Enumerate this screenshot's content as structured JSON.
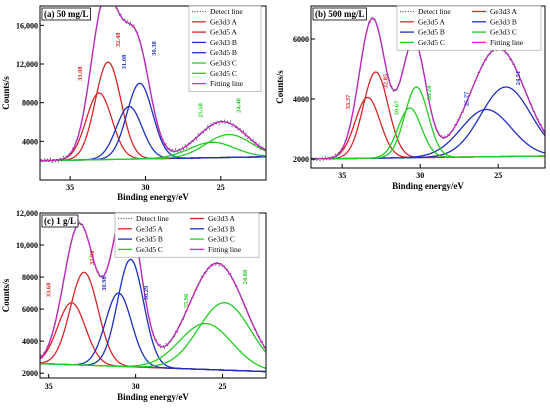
{
  "chart_data": [
    {
      "type": "line",
      "panel_label": "(a) 50 mg/L",
      "xlabel": "Binding energy/eV",
      "ylabel": "Counts/s",
      "xlim": [
        37,
        22
      ],
      "ylim": [
        0,
        18000
      ],
      "x_ticks": [
        35,
        30,
        25
      ],
      "y_ticks": [
        4000,
        8000,
        12000,
        16000
      ],
      "y_tick_labels": [
        "4000",
        "8000",
        "12,000",
        "16,000"
      ],
      "baseline": {
        "start": 2000,
        "end": 2400
      },
      "legend": {
        "position": "top-right",
        "columns": 1,
        "entries": [
          "Detect line",
          "Ge3d3 A",
          "Ge3d5 A",
          "Ge3d3 B",
          "Ge3d5 B",
          "Ge3d3 C",
          "Ge3d5 C",
          "Fitting line"
        ]
      },
      "series": [
        {
          "name": "Ge3d3 A",
          "color": "#d62728",
          "center": 33.08,
          "height": 9000,
          "width": 0.85
        },
        {
          "name": "Ge3d5 A",
          "color": "#d62728",
          "center": 32.48,
          "height": 12200,
          "width": 0.85
        },
        {
          "name": "Ge3d3 B",
          "color": "#1f2fbf",
          "center": 31.08,
          "height": 7600,
          "width": 0.85
        },
        {
          "name": "Ge3d5 B",
          "color": "#1f2fbf",
          "center": 30.38,
          "height": 10000,
          "width": 0.85
        },
        {
          "name": "Ge3d3 C",
          "color": "#22cc22",
          "center": 25.58,
          "height": 3900,
          "width": 1.5
        },
        {
          "name": "Ge3d5 C",
          "color": "#22cc22",
          "center": 24.48,
          "height": 4700,
          "width": 1.5
        }
      ],
      "detect_color": "#555555",
      "fit_color": "#e01ee0",
      "annotations": [
        {
          "text": "33.08",
          "color": "#d62728",
          "x": 34.2,
          "y": 11000
        },
        {
          "text": "32.48",
          "color": "#d62728",
          "x": 31.7,
          "y": 14500
        },
        {
          "text": "31.08",
          "color": "#1f2fbf",
          "x": 31.3,
          "y": 12200
        },
        {
          "text": "30.38",
          "color": "#1f2fbf",
          "x": 29.3,
          "y": 13600
        },
        {
          "text": "25.58",
          "color": "#22cc22",
          "x": 26.2,
          "y": 7200
        },
        {
          "text": "24.48",
          "color": "#22cc22",
          "x": 23.7,
          "y": 7700
        }
      ]
    },
    {
      "type": "line",
      "panel_label": "(b) 500 mg/L",
      "xlabel": "Binding energy/eV",
      "ylabel": "Counts/s",
      "xlim": [
        37,
        22
      ],
      "ylim": [
        1700,
        7100
      ],
      "x_ticks": [
        35,
        30,
        25
      ],
      "y_ticks": [
        2000,
        4000,
        6000
      ],
      "y_tick_labels": [
        "2000",
        "4000",
        "6000"
      ],
      "baseline": {
        "start": 2000,
        "end": 2100
      },
      "legend": {
        "position": "top-right",
        "columns": 2,
        "entries": [
          "Detect line",
          "Ge3d3 A",
          "Ge3d5 A",
          "Ge3d3 B",
          "Ge3d5 B",
          "Ge3d3 C",
          "Ge3d5 C",
          "Fitting line"
        ]
      },
      "series": [
        {
          "name": "Ge3d3 A",
          "color": "#d62728",
          "center": 33.37,
          "height": 4050,
          "width": 0.8
        },
        {
          "name": "Ge3d5 A",
          "color": "#d62728",
          "center": 32.85,
          "height": 4900,
          "width": 0.8
        },
        {
          "name": "Ge3d3 B",
          "color": "#1f2fbf",
          "center": 25.77,
          "height": 3650,
          "width": 1.6
        },
        {
          "name": "Ge3d5 B",
          "color": "#1f2fbf",
          "center": 24.51,
          "height": 4400,
          "width": 1.6
        },
        {
          "name": "Ge3d3 C",
          "color": "#22cc22",
          "center": 30.67,
          "height": 3700,
          "width": 0.75
        },
        {
          "name": "Ge3d5 C",
          "color": "#22cc22",
          "center": 30.24,
          "height": 4400,
          "width": 0.75
        }
      ],
      "detect_color": "#555555",
      "fit_color": "#e01ee0",
      "annotations": [
        {
          "text": "33.37",
          "color": "#d62728",
          "x": 34.5,
          "y": 3900
        },
        {
          "text": "32.85",
          "color": "#d62728",
          "x": 32.1,
          "y": 4600
        },
        {
          "text": "30.67",
          "color": "#22cc22",
          "x": 31.4,
          "y": 3700
        },
        {
          "text": "30.24",
          "color": "#22cc22",
          "x": 29.3,
          "y": 4200
        },
        {
          "text": "25.77",
          "color": "#1f2fbf",
          "x": 26.9,
          "y": 4000
        },
        {
          "text": "24.51",
          "color": "#1f2fbf",
          "x": 23.6,
          "y": 4700
        }
      ]
    },
    {
      "type": "line",
      "panel_label": "(c) 1 g/L",
      "xlabel": "Binding energy/eV",
      "ylabel": "Counts/s",
      "xlim": [
        35.5,
        22.5
      ],
      "ylim": [
        1700,
        12000
      ],
      "x_ticks": [
        35,
        30,
        25
      ],
      "y_ticks": [
        2000,
        4000,
        6000,
        8000,
        10000,
        12000
      ],
      "y_tick_labels": [
        "2000",
        "4000",
        "6000",
        "8000",
        "10,000",
        "12,000"
      ],
      "baseline": {
        "start": 2600,
        "end": 2100
      },
      "legend": {
        "position": "top-right",
        "columns": 2,
        "entries": [
          "Detect line",
          "Ge3d3 A",
          "Ge3d5 A",
          "Ge3d3 B",
          "Ge3d5 B",
          "Ge3d3 C",
          "Ge3d5 C",
          "Fitting line"
        ]
      },
      "series": [
        {
          "name": "Ge3d3 A",
          "color": "#d62728",
          "center": 33.68,
          "height": 6400,
          "width": 0.8
        },
        {
          "name": "Ge3d5 A",
          "color": "#d62728",
          "center": 32.96,
          "height": 8300,
          "width": 0.8
        },
        {
          "name": "Ge3d3 B",
          "color": "#1f2fbf",
          "center": 30.98,
          "height": 7000,
          "width": 0.75
        },
        {
          "name": "Ge3d5 B",
          "color": "#1f2fbf",
          "center": 30.29,
          "height": 9100,
          "width": 0.75
        },
        {
          "name": "Ge3d3 C",
          "color": "#22cc22",
          "center": 25.96,
          "height": 5100,
          "width": 1.5
        },
        {
          "name": "Ge3d5 C",
          "color": "#22cc22",
          "center": 24.88,
          "height": 6400,
          "width": 1.5
        }
      ],
      "detect_color": "#555555",
      "fit_color": "#e01ee0",
      "annotations": [
        {
          "text": "33.68",
          "color": "#d62728",
          "x": 34.9,
          "y": 7200
        },
        {
          "text": "32.96",
          "color": "#d62728",
          "x": 32.4,
          "y": 9200
        },
        {
          "text": "30.98",
          "color": "#1f2fbf",
          "x": 31.7,
          "y": 7600
        },
        {
          "text": "30.29",
          "color": "#1f2fbf",
          "x": 29.3,
          "y": 7000
        },
        {
          "text": "25.96",
          "color": "#22cc22",
          "x": 27.0,
          "y": 6500
        },
        {
          "text": "24.88",
          "color": "#22cc22",
          "x": 23.6,
          "y": 8000
        }
      ]
    }
  ]
}
